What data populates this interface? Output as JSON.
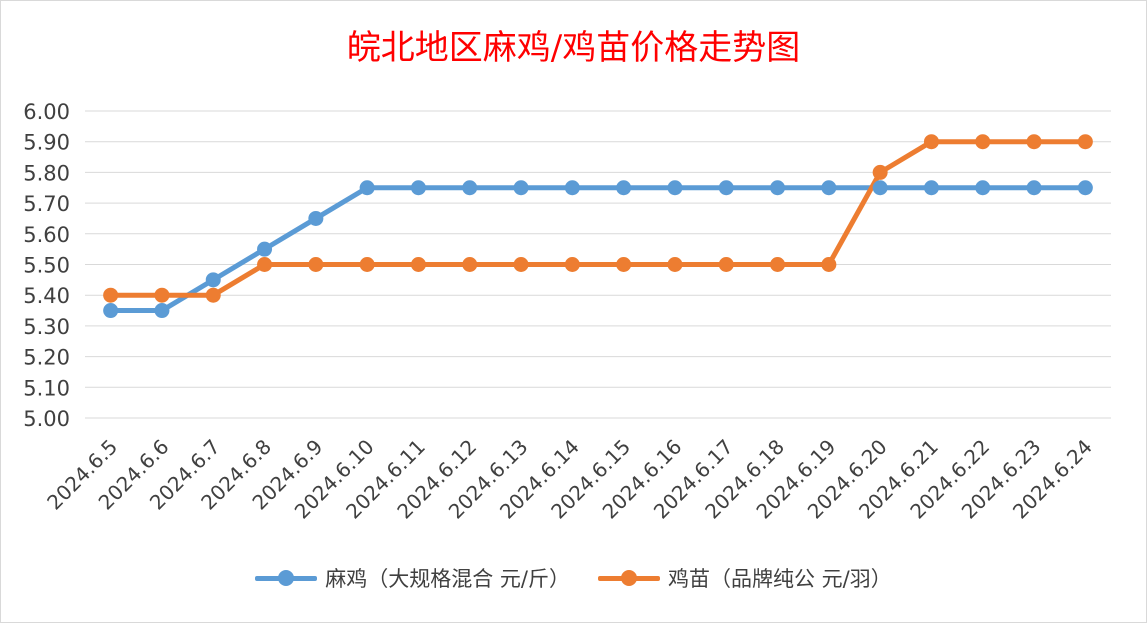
{
  "chart_data": {
    "type": "line",
    "title": "皖北地区麻鸡/鸡苗价格走势图",
    "categories": [
      "2024.6.5",
      "2024.6.6",
      "2024.6.7",
      "2024.6.8",
      "2024.6.9",
      "2024.6.10",
      "2024.6.11",
      "2024.6.12",
      "2024.6.13",
      "2024.6.14",
      "2024.6.15",
      "2024.6.16",
      "2024.6.17",
      "2024.6.18",
      "2024.6.19",
      "2024.6.20",
      "2024.6.21",
      "2024.6.22",
      "2024.6.23",
      "2024.6.24"
    ],
    "series": [
      {
        "name": "麻鸡（大规格混合 元/斤）",
        "color": "#5b9bd5",
        "values": [
          5.35,
          5.35,
          5.45,
          5.55,
          5.65,
          5.75,
          5.75,
          5.75,
          5.75,
          5.75,
          5.75,
          5.75,
          5.75,
          5.75,
          5.75,
          5.75,
          5.75,
          5.75,
          5.75,
          5.75
        ]
      },
      {
        "name": "鸡苗（品牌纯公 元/羽）",
        "color": "#ed7d31",
        "values": [
          5.4,
          5.4,
          5.4,
          5.5,
          5.5,
          5.5,
          5.5,
          5.5,
          5.5,
          5.5,
          5.5,
          5.5,
          5.5,
          5.5,
          5.5,
          5.8,
          5.9,
          5.9,
          5.9,
          5.9
        ]
      }
    ],
    "ylim": [
      5.0,
      6.0
    ],
    "yticks": [
      "5.00",
      "5.10",
      "5.20",
      "5.30",
      "5.40",
      "5.50",
      "5.60",
      "5.70",
      "5.80",
      "5.90",
      "6.00"
    ],
    "grid": true,
    "legend_position": "bottom",
    "title_color": "#ff0000"
  }
}
